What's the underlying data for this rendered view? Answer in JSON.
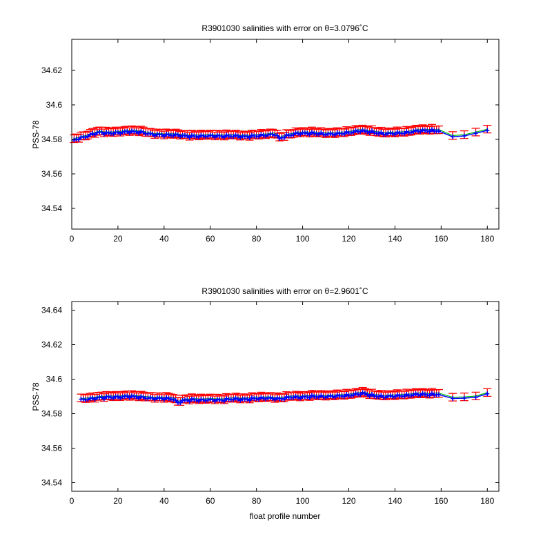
{
  "chart_data": [
    {
      "type": "scatter",
      "title": "R3901030 salinities with error on θ=3.0796˚C",
      "xlabel": "",
      "ylabel": "PSS-78",
      "xlim": [
        0,
        185
      ],
      "ylim": [
        34.528,
        34.638
      ],
      "xticks": [
        0,
        20,
        40,
        60,
        80,
        100,
        120,
        140,
        160,
        180
      ],
      "yticks": [
        34.54,
        34.56,
        34.58,
        34.6,
        34.62
      ],
      "ytick_labels": [
        "34.54",
        "34.56",
        "34.58",
        "34.6",
        "34.62"
      ],
      "grid": false,
      "colors": {
        "error_bars": "#ff0000",
        "points": "#0000ff",
        "fit_line": "#00bb00"
      },
      "keypoints": [
        [
          1,
          34.5795
        ],
        [
          3,
          34.5805
        ],
        [
          6,
          34.5815
        ],
        [
          9,
          34.583
        ],
        [
          12,
          34.584
        ],
        [
          16,
          34.5835
        ],
        [
          20,
          34.5838
        ],
        [
          25,
          34.5845
        ],
        [
          30,
          34.5842
        ],
        [
          35,
          34.5828
        ],
        [
          40,
          34.5825
        ],
        [
          45,
          34.5825
        ],
        [
          50,
          34.5818
        ],
        [
          55,
          34.5818
        ],
        [
          60,
          34.582
        ],
        [
          65,
          34.5818
        ],
        [
          70,
          34.582
        ],
        [
          75,
          34.5815
        ],
        [
          80,
          34.582
        ],
        [
          85,
          34.5825
        ],
        [
          88,
          34.583
        ],
        [
          90,
          34.5805
        ],
        [
          93,
          34.582
        ],
        [
          98,
          34.5835
        ],
        [
          105,
          34.5835
        ],
        [
          110,
          34.583
        ],
        [
          115,
          34.5832
        ],
        [
          120,
          34.5838
        ],
        [
          125,
          34.585
        ],
        [
          130,
          34.5842
        ],
        [
          135,
          34.5832
        ],
        [
          140,
          34.5835
        ],
        [
          145,
          34.5838
        ],
        [
          150,
          34.585
        ],
        [
          155,
          34.585
        ],
        [
          159,
          34.585
        ]
      ],
      "sparse_points": [
        [
          165,
          34.5815
        ],
        [
          170,
          34.582
        ],
        [
          175,
          34.5835
        ],
        [
          180,
          34.5852
        ]
      ],
      "error_offset": 0.0015,
      "error_halfspan": 0.0022
    },
    {
      "type": "scatter",
      "title": "R3901030 salinities with error on θ=2.9601˚C",
      "xlabel": "float profile number",
      "ylabel": "PSS-78",
      "xlim": [
        0,
        185
      ],
      "ylim": [
        34.535,
        34.645
      ],
      "xticks": [
        0,
        20,
        40,
        60,
        80,
        100,
        120,
        140,
        160,
        180
      ],
      "yticks": [
        34.54,
        34.56,
        34.58,
        34.6,
        34.62,
        34.64
      ],
      "ytick_labels": [
        "34.54",
        "34.56",
        "34.58",
        "34.6",
        "34.62",
        "34.64"
      ],
      "grid": false,
      "colors": {
        "error_bars": "#ff0000",
        "points": "#0000ff",
        "fit_line": "#00bb00"
      },
      "keypoints": [
        [
          4,
          34.588
        ],
        [
          8,
          34.5885
        ],
        [
          12,
          34.5892
        ],
        [
          16,
          34.5895
        ],
        [
          20,
          34.5895
        ],
        [
          25,
          34.59
        ],
        [
          30,
          34.5895
        ],
        [
          35,
          34.5888
        ],
        [
          40,
          34.5888
        ],
        [
          44,
          34.5885
        ],
        [
          46,
          34.5862
        ],
        [
          48,
          34.5875
        ],
        [
          52,
          34.588
        ],
        [
          56,
          34.5878
        ],
        [
          60,
          34.588
        ],
        [
          65,
          34.5878
        ],
        [
          70,
          34.5885
        ],
        [
          75,
          34.5882
        ],
        [
          80,
          34.5888
        ],
        [
          85,
          34.589
        ],
        [
          90,
          34.5885
        ],
        [
          95,
          34.5895
        ],
        [
          100,
          34.5895
        ],
        [
          105,
          34.59
        ],
        [
          110,
          34.5898
        ],
        [
          115,
          34.5902
        ],
        [
          120,
          34.5905
        ],
        [
          126,
          34.5918
        ],
        [
          130,
          34.5905
        ],
        [
          135,
          34.5898
        ],
        [
          140,
          34.5902
        ],
        [
          145,
          34.5905
        ],
        [
          150,
          34.5912
        ],
        [
          155,
          34.591
        ],
        [
          159,
          34.5912
        ]
      ],
      "sparse_points": [
        [
          165,
          34.5888
        ],
        [
          170,
          34.589
        ],
        [
          175,
          34.5895
        ],
        [
          180,
          34.5915
        ]
      ],
      "error_offset": 0.0015,
      "error_halfspan": 0.0022
    }
  ]
}
